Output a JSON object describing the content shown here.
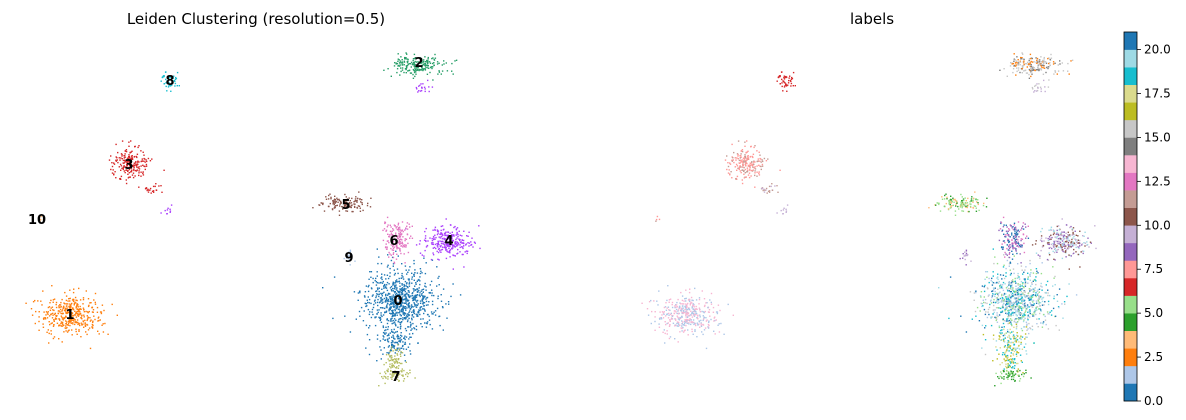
{
  "chart_data": [
    {
      "type": "scatter",
      "title": "Leiden Clustering (resolution=0.5)",
      "xlabel": "",
      "ylabel": "",
      "grid": false,
      "legend": "on-data",
      "clusters": [
        {
          "label": "0",
          "color": "#1f77b4"
        },
        {
          "label": "1",
          "color": "#ff7f0e"
        },
        {
          "label": "2",
          "color": "#279e68"
        },
        {
          "label": "3",
          "color": "#d62728"
        },
        {
          "label": "4",
          "color": "#aa40fc"
        },
        {
          "label": "5",
          "color": "#8c564b"
        },
        {
          "label": "6",
          "color": "#e377c2"
        },
        {
          "label": "7",
          "color": "#b5bd61"
        },
        {
          "label": "8",
          "color": "#17becf"
        },
        {
          "label": "9",
          "color": "#aec7e8"
        },
        {
          "label": "10",
          "color": "#ffbb78"
        }
      ]
    },
    {
      "type": "scatter",
      "title": "labels",
      "xlabel": "",
      "ylabel": "",
      "grid": false,
      "legend": "colorbar-right",
      "colormap": "tab20",
      "colorbar": {
        "range": [
          0,
          21
        ],
        "ticks": [
          "0.0",
          "2.5",
          "5.0",
          "7.5",
          "10.0",
          "12.5",
          "15.0",
          "17.5",
          "20.0"
        ],
        "tick_values": [
          0,
          2.5,
          5,
          7.5,
          10,
          12.5,
          15,
          17.5,
          20
        ],
        "colors": [
          "#1f77b4",
          "#aec7e8",
          "#ff7f0e",
          "#ffbb78",
          "#2ca02c",
          "#98df8a",
          "#d62728",
          "#ff9896",
          "#9467bd",
          "#c5b0d5",
          "#8c564b",
          "#c49c94",
          "#e377c2",
          "#f7b6d2",
          "#7f7f7f",
          "#c7c7c7",
          "#bcbd22",
          "#dbdb8d",
          "#17becf",
          "#9edae5"
        ]
      }
    }
  ]
}
